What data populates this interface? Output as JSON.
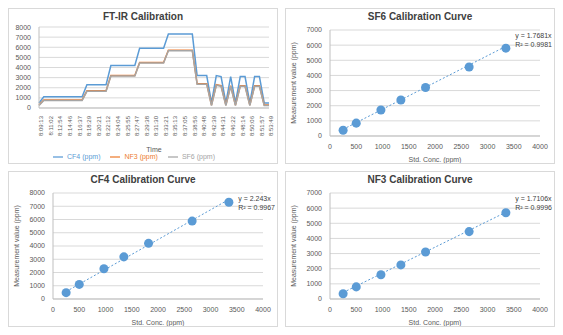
{
  "chart_data": [
    {
      "type": "line",
      "title": "FT-IR Calibration",
      "x_label": "Time",
      "categories": [
        "8:09:13",
        null,
        "8:11:02",
        null,
        "8:12:54",
        null,
        "8:14:46",
        null,
        "8:16:37",
        null,
        "8:18:29",
        null,
        "8:20:21",
        null,
        "8:22:12",
        null,
        "8:24:04",
        null,
        "8:25:55",
        null,
        "8:27:47",
        null,
        "8:29:38",
        null,
        "8:31:30",
        null,
        "8:33:21",
        null,
        "8:35:13",
        null,
        "8:37:05",
        null,
        "8:38:56",
        null,
        "8:40:48",
        null,
        "8:42:39",
        null,
        "8:44:31",
        null,
        "8:46:22",
        null,
        "8:48:14",
        null,
        "8:50:06",
        null,
        "8:51:57",
        null,
        "8:53:49"
      ],
      "series": [
        {
          "name": "CF4 (ppm)",
          "color": "#5b9bd5",
          "values": [
            500,
            1100,
            1100,
            1100,
            1100,
            1100,
            1100,
            1100,
            1100,
            1100,
            2300,
            2300,
            2300,
            2300,
            2300,
            4200,
            4200,
            4200,
            4200,
            4200,
            4200,
            5900,
            5900,
            5900,
            5900,
            5900,
            5900,
            7300,
            7300,
            7300,
            7300,
            7300,
            7300,
            3200,
            3200,
            3200,
            500,
            3200,
            3100,
            500,
            3100,
            500,
            3100,
            3100,
            500,
            3100,
            3100,
            500,
            500
          ]
        },
        {
          "name": "NF3 (ppm)",
          "color": "#ed7d31",
          "values": [
            300,
            800,
            800,
            800,
            800,
            800,
            800,
            800,
            800,
            800,
            1700,
            1700,
            1700,
            1700,
            1700,
            3200,
            3200,
            3200,
            3200,
            3200,
            3200,
            4500,
            4500,
            4500,
            4500,
            4500,
            4500,
            5700,
            5700,
            5700,
            5700,
            5700,
            5700,
            2400,
            2400,
            2400,
            300,
            2300,
            2200,
            300,
            2200,
            300,
            2200,
            2200,
            300,
            2200,
            2200,
            300,
            300
          ]
        },
        {
          "name": "SF6 (ppm)",
          "color": "#a5a5a5",
          "values": [
            250,
            750,
            750,
            750,
            750,
            750,
            750,
            750,
            750,
            750,
            1650,
            1650,
            1650,
            1650,
            1650,
            3150,
            3150,
            3150,
            3150,
            3150,
            3150,
            4450,
            4450,
            4450,
            4450,
            4450,
            4450,
            5650,
            5650,
            5650,
            5650,
            5650,
            5650,
            2350,
            2350,
            2350,
            250,
            2250,
            2150,
            250,
            2150,
            250,
            2150,
            2150,
            250,
            2150,
            2150,
            250,
            250
          ]
        }
      ],
      "ylim": [
        0,
        8000
      ],
      "yticks": [
        0,
        1000,
        2000,
        3000,
        4000,
        5000,
        6000,
        7000,
        8000
      ],
      "grid": true,
      "legend": "bottom"
    },
    {
      "type": "scatter",
      "title": "SF6 Calibration Curve",
      "x_label": "Std. Conc. (ppm)",
      "y_label": "Measurement value (ppm)",
      "color": "#5b9bd5",
      "marker": "circle",
      "x": [
        250,
        500,
        970,
        1350,
        1820,
        2650,
        3350
      ],
      "values": [
        380,
        850,
        1720,
        2380,
        3200,
        4560,
        5800
      ],
      "trendline": {
        "slope": 1.7681,
        "line_style": "dotted"
      },
      "annotations": [
        "y = 1.7681x",
        "R² = 0.9981"
      ],
      "xlim": [
        0,
        4000
      ],
      "xticks": [
        0,
        500,
        1000,
        1500,
        2000,
        2500,
        3000,
        3500,
        4000
      ],
      "ylim": [
        0,
        7000
      ],
      "yticks": [
        0,
        1000,
        2000,
        3000,
        4000,
        5000,
        6000,
        7000
      ],
      "grid": true
    },
    {
      "type": "scatter",
      "title": "CF4 Calibration Curve",
      "x_label": "Std. Conc. (ppm)",
      "y_label": "Measurement value (ppm)",
      "color": "#5b9bd5",
      "marker": "circle",
      "x": [
        250,
        500,
        970,
        1350,
        1820,
        2650,
        3350
      ],
      "values": [
        480,
        1100,
        2280,
        3180,
        4200,
        5880,
        7300
      ],
      "trendline": {
        "slope": 2.243,
        "line_style": "dotted"
      },
      "annotations": [
        "y = 2.243x",
        "R² = 0.9967"
      ],
      "xlim": [
        0,
        4000
      ],
      "xticks": [
        0,
        500,
        1000,
        1500,
        2000,
        2500,
        3000,
        3500,
        4000
      ],
      "ylim": [
        0,
        8000
      ],
      "yticks": [
        0,
        1000,
        2000,
        3000,
        4000,
        5000,
        6000,
        7000,
        8000
      ],
      "grid": true
    },
    {
      "type": "scatter",
      "title": "NF3 Calibration Curve",
      "x_label": "Std. Conc. (ppm)",
      "y_label": "Measurement value (ppm)",
      "color": "#5b9bd5",
      "marker": "circle",
      "x": [
        250,
        500,
        970,
        1350,
        1820,
        2650,
        3350
      ],
      "values": [
        350,
        800,
        1600,
        2250,
        3100,
        4450,
        5700
      ],
      "trendline": {
        "slope": 1.7106,
        "line_style": "dotted"
      },
      "annotations": [
        "y = 1.7106x",
        "R² = 0.9996"
      ],
      "xlim": [
        0,
        4000
      ],
      "xticks": [
        0,
        500,
        1000,
        1500,
        2000,
        2500,
        3000,
        3500,
        4000
      ],
      "ylim": [
        0,
        7000
      ],
      "yticks": [
        0,
        1000,
        2000,
        3000,
        4000,
        5000,
        6000,
        7000
      ],
      "grid": true
    }
  ]
}
